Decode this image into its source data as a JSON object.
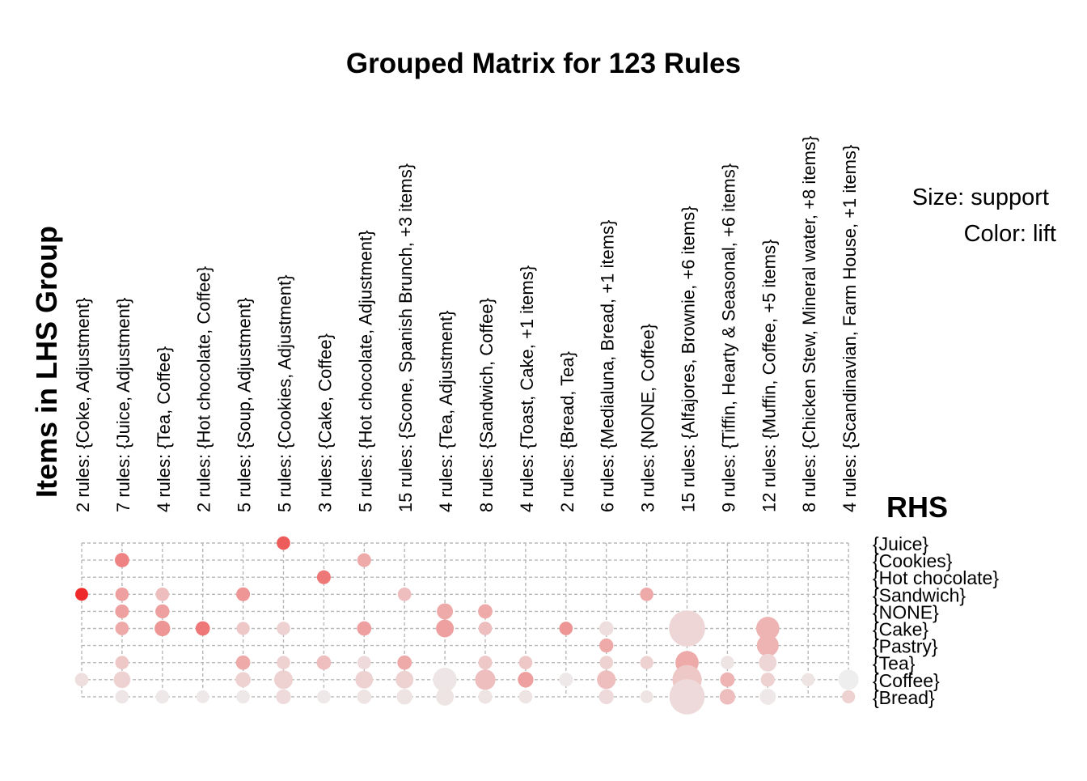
{
  "chart_data": {
    "type": "scatter",
    "title": "Grouped Matrix for 123 Rules",
    "ylabel": "Items in LHS Group",
    "rhs_title": "RHS",
    "legend": [
      "Size: support",
      "Color: lift"
    ],
    "lhs_groups": [
      "2 rules: {Coke, Adjustment}",
      "7 rules: {Juice, Adjustment}",
      "4 rules: {Tea, Coffee}",
      "2 rules: {Hot chocolate, Coffee}",
      "5 rules: {Soup, Adjustment}",
      "5 rules: {Cookies, Adjustment}",
      "3 rules: {Cake, Coffee}",
      "5 rules: {Hot chocolate, Adjustment}",
      "15 rules: {Scone, Spanish Brunch, +3 items}",
      "4 rules: {Tea, Adjustment}",
      "8 rules: {Sandwich, Coffee}",
      "4 rules: {Toast, Cake, +1 items}",
      "2 rules: {Bread, Tea}",
      "6 rules: {Medialuna, Bread, +1 items}",
      "3 rules: {NONE, Coffee}",
      "15 rules: {Alfajores, Brownie, +6 items}",
      "9 rules: {Tiffin, Hearty & Seasonal, +6 items}",
      "12 rules: {Muffin, Coffee, +5 items}",
      "8 rules: {Chicken Stew, Mineral water, +8 items}",
      "4 rules: {Scandinavian, Farm House, +1 items}"
    ],
    "rhs_items": [
      "{Juice}",
      "{Cookies}",
      "{Hot chocolate}",
      "{Sandwich}",
      "{NONE}",
      "{Cake}",
      "{Pastry}",
      "{Tea}",
      "{Coffee}",
      "{Bread}"
    ],
    "color_scale": {
      "low": "#eeeeee",
      "high": "#ee2a2a"
    },
    "points": [
      {
        "col": 0,
        "row": 3,
        "support": 0.1,
        "lift": 1.0
      },
      {
        "col": 0,
        "row": 8,
        "support": 0.12,
        "lift": 0.08
      },
      {
        "col": 1,
        "row": 1,
        "support": 0.15,
        "lift": 0.55
      },
      {
        "col": 1,
        "row": 3,
        "support": 0.12,
        "lift": 0.4
      },
      {
        "col": 1,
        "row": 4,
        "support": 0.13,
        "lift": 0.4
      },
      {
        "col": 1,
        "row": 5,
        "support": 0.12,
        "lift": 0.35
      },
      {
        "col": 1,
        "row": 7,
        "support": 0.12,
        "lift": 0.2
      },
      {
        "col": 1,
        "row": 8,
        "support": 0.25,
        "lift": 0.15
      },
      {
        "col": 1,
        "row": 9,
        "support": 0.12,
        "lift": 0.04
      },
      {
        "col": 2,
        "row": 3,
        "support": 0.12,
        "lift": 0.25
      },
      {
        "col": 2,
        "row": 4,
        "support": 0.14,
        "lift": 0.4
      },
      {
        "col": 2,
        "row": 5,
        "support": 0.2,
        "lift": 0.45
      },
      {
        "col": 2,
        "row": 9,
        "support": 0.12,
        "lift": 0.03
      },
      {
        "col": 3,
        "row": 5,
        "support": 0.15,
        "lift": 0.6
      },
      {
        "col": 3,
        "row": 9,
        "support": 0.1,
        "lift": 0.03
      },
      {
        "col": 4,
        "row": 3,
        "support": 0.13,
        "lift": 0.45
      },
      {
        "col": 4,
        "row": 5,
        "support": 0.11,
        "lift": 0.2
      },
      {
        "col": 4,
        "row": 7,
        "support": 0.15,
        "lift": 0.35
      },
      {
        "col": 4,
        "row": 8,
        "support": 0.18,
        "lift": 0.15
      },
      {
        "col": 4,
        "row": 9,
        "support": 0.12,
        "lift": 0.03
      },
      {
        "col": 5,
        "row": 0,
        "support": 0.12,
        "lift": 0.75
      },
      {
        "col": 5,
        "row": 5,
        "support": 0.12,
        "lift": 0.15
      },
      {
        "col": 5,
        "row": 7,
        "support": 0.12,
        "lift": 0.15
      },
      {
        "col": 5,
        "row": 8,
        "support": 0.35,
        "lift": 0.15
      },
      {
        "col": 5,
        "row": 9,
        "support": 0.17,
        "lift": 0.1
      },
      {
        "col": 6,
        "row": 2,
        "support": 0.13,
        "lift": 0.6
      },
      {
        "col": 6,
        "row": 7,
        "support": 0.15,
        "lift": 0.25
      },
      {
        "col": 6,
        "row": 9,
        "support": 0.12,
        "lift": 0.03
      },
      {
        "col": 7,
        "row": 1,
        "support": 0.13,
        "lift": 0.35
      },
      {
        "col": 7,
        "row": 5,
        "support": 0.15,
        "lift": 0.4
      },
      {
        "col": 7,
        "row": 7,
        "support": 0.12,
        "lift": 0.1
      },
      {
        "col": 7,
        "row": 8,
        "support": 0.3,
        "lift": 0.15
      },
      {
        "col": 7,
        "row": 9,
        "support": 0.15,
        "lift": 0.05
      },
      {
        "col": 8,
        "row": 3,
        "support": 0.12,
        "lift": 0.25
      },
      {
        "col": 8,
        "row": 7,
        "support": 0.15,
        "lift": 0.35
      },
      {
        "col": 8,
        "row": 8,
        "support": 0.3,
        "lift": 0.15
      },
      {
        "col": 8,
        "row": 9,
        "support": 0.2,
        "lift": 0.05
      },
      {
        "col": 9,
        "row": 4,
        "support": 0.22,
        "lift": 0.35
      },
      {
        "col": 9,
        "row": 5,
        "support": 0.3,
        "lift": 0.4
      },
      {
        "col": 9,
        "row": 8,
        "support": 0.7,
        "lift": 0.04
      },
      {
        "col": 9,
        "row": 9,
        "support": 0.3,
        "lift": 0.05
      },
      {
        "col": 10,
        "row": 4,
        "support": 0.15,
        "lift": 0.35
      },
      {
        "col": 10,
        "row": 5,
        "support": 0.12,
        "lift": 0.25
      },
      {
        "col": 10,
        "row": 7,
        "support": 0.13,
        "lift": 0.2
      },
      {
        "col": 10,
        "row": 8,
        "support": 0.45,
        "lift": 0.25
      },
      {
        "col": 10,
        "row": 9,
        "support": 0.14,
        "lift": 0.05
      },
      {
        "col": 11,
        "row": 7,
        "support": 0.12,
        "lift": 0.2
      },
      {
        "col": 11,
        "row": 8,
        "support": 0.2,
        "lift": 0.4
      },
      {
        "col": 11,
        "row": 9,
        "support": 0.12,
        "lift": 0.05
      },
      {
        "col": 12,
        "row": 5,
        "support": 0.12,
        "lift": 0.45
      },
      {
        "col": 12,
        "row": 8,
        "support": 0.13,
        "lift": 0.03
      },
      {
        "col": 13,
        "row": 5,
        "support": 0.15,
        "lift": 0.08
      },
      {
        "col": 13,
        "row": 6,
        "support": 0.14,
        "lift": 0.35
      },
      {
        "col": 13,
        "row": 7,
        "support": 0.12,
        "lift": 0.15
      },
      {
        "col": 13,
        "row": 8,
        "support": 0.35,
        "lift": 0.25
      },
      {
        "col": 13,
        "row": 9,
        "support": 0.17,
        "lift": 0.1
      },
      {
        "col": 14,
        "row": 3,
        "support": 0.12,
        "lift": 0.35
      },
      {
        "col": 14,
        "row": 7,
        "support": 0.11,
        "lift": 0.15
      },
      {
        "col": 14,
        "row": 9,
        "support": 0.1,
        "lift": 0.05
      },
      {
        "col": 15,
        "row": 5,
        "support": 2.0,
        "lift": 0.12
      },
      {
        "col": 15,
        "row": 7,
        "support": 0.65,
        "lift": 0.35
      },
      {
        "col": 15,
        "row": 8,
        "support": 1.2,
        "lift": 0.2
      },
      {
        "col": 15,
        "row": 9,
        "support": 1.9,
        "lift": 0.1
      },
      {
        "col": 16,
        "row": 7,
        "support": 0.12,
        "lift": 0.05
      },
      {
        "col": 16,
        "row": 8,
        "support": 0.16,
        "lift": 0.3
      },
      {
        "col": 16,
        "row": 9,
        "support": 0.2,
        "lift": 0.25
      },
      {
        "col": 17,
        "row": 5,
        "support": 0.65,
        "lift": 0.3
      },
      {
        "col": 17,
        "row": 6,
        "support": 0.55,
        "lift": 0.3
      },
      {
        "col": 17,
        "row": 7,
        "support": 0.3,
        "lift": 0.12
      },
      {
        "col": 17,
        "row": 8,
        "support": 0.14,
        "lift": 0.15
      },
      {
        "col": 17,
        "row": 9,
        "support": 0.22,
        "lift": 0.03
      },
      {
        "col": 18,
        "row": 8,
        "support": 0.11,
        "lift": 0.05
      },
      {
        "col": 19,
        "row": 8,
        "support": 0.45,
        "lift": 0.0
      },
      {
        "col": 19,
        "row": 9,
        "support": 0.11,
        "lift": 0.15
      }
    ]
  }
}
